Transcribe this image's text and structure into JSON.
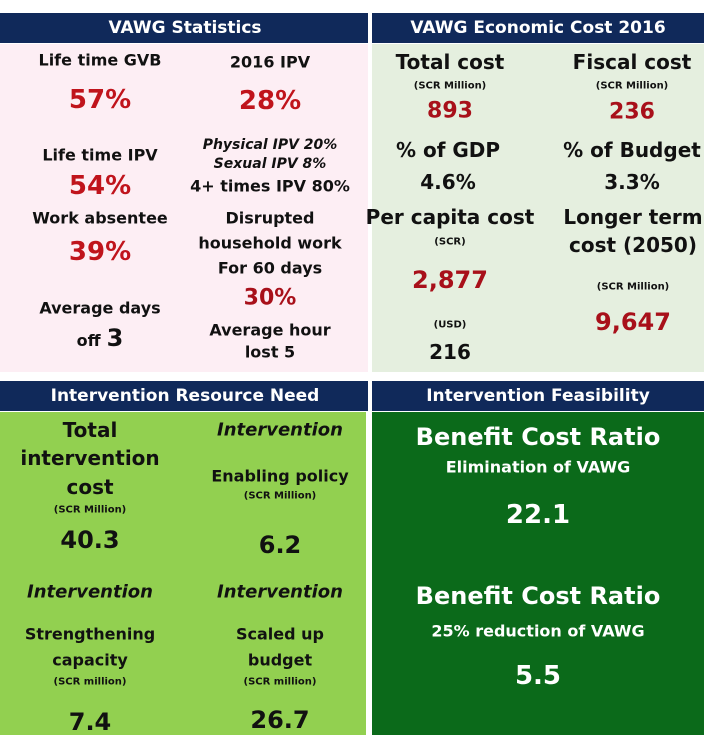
{
  "statistics": {
    "title": "VAWG Statistics",
    "lifetime_gvb": {
      "label": "Life time GVB",
      "value": "57%"
    },
    "ipv_2016": {
      "label": "2016 IPV",
      "value": "28%"
    },
    "lifetime_ipv": {
      "label": "Life time IPV",
      "value": "54%"
    },
    "ipv_breakdown": [
      "Physical IPV 20%",
      "Sexual IPV 8%",
      "4+ times IPV 80%"
    ],
    "work_absentee": {
      "label": "Work absentee",
      "value": "39%"
    },
    "average_days": {
      "label": [
        "Average days",
        "off"
      ],
      "value": "3"
    },
    "disrupted_work": {
      "label": [
        "Disrupted",
        "household work",
        "For 60 days"
      ],
      "value": "30%",
      "note": [
        "Average hour",
        "lost 5"
      ]
    }
  },
  "economic_cost": {
    "title": "VAWG Economic Cost 2016",
    "total_cost": {
      "label": "Total cost",
      "unit": "(SCR Million)",
      "value": "893"
    },
    "fiscal_cost": {
      "label": "Fiscal cost",
      "unit": "(SCR Million)",
      "value": "236"
    },
    "gdp_share": {
      "label": "% of GDP",
      "value": "4.6%"
    },
    "budget_share": {
      "label": "% of Budget",
      "value": "3.3%"
    },
    "per_capita": {
      "label": "Per capita cost",
      "unit": "(SCR)",
      "value": "2,877",
      "unit2": "(USD)",
      "value2": "216"
    },
    "longer_term": {
      "label": [
        "Longer term",
        "cost (2050)"
      ],
      "unit": "(SCR Million)",
      "value": "9,647"
    }
  },
  "resource_need": {
    "title": "Intervention Resource Need",
    "total": {
      "label": [
        "Total",
        "intervention",
        "cost"
      ],
      "unit": "(SCR Million)",
      "value": "40.3"
    },
    "enabling": {
      "heading": "Intervention",
      "label": [
        "Enabling policy"
      ],
      "unit": "(SCR Million)",
      "value": "6.2"
    },
    "strengthening": {
      "heading": "Intervention",
      "label": [
        "Strengthening",
        "capacity"
      ],
      "unit": "(SCR million)",
      "value": "7.4"
    },
    "scaled_up": {
      "heading": "Intervention",
      "label": [
        "Scaled up",
        "budget"
      ],
      "unit": "(SCR million)",
      "value": "26.7"
    }
  },
  "feasibility": {
    "title": "Intervention Feasibility",
    "ratios": [
      {
        "heading": "Benefit Cost Ratio",
        "scenario": "Elimination of VAWG",
        "value": "22.1"
      },
      {
        "heading": "Benefit Cost Ratio",
        "scenario": "25% reduction of VAWG",
        "value": "5.5"
      }
    ]
  }
}
